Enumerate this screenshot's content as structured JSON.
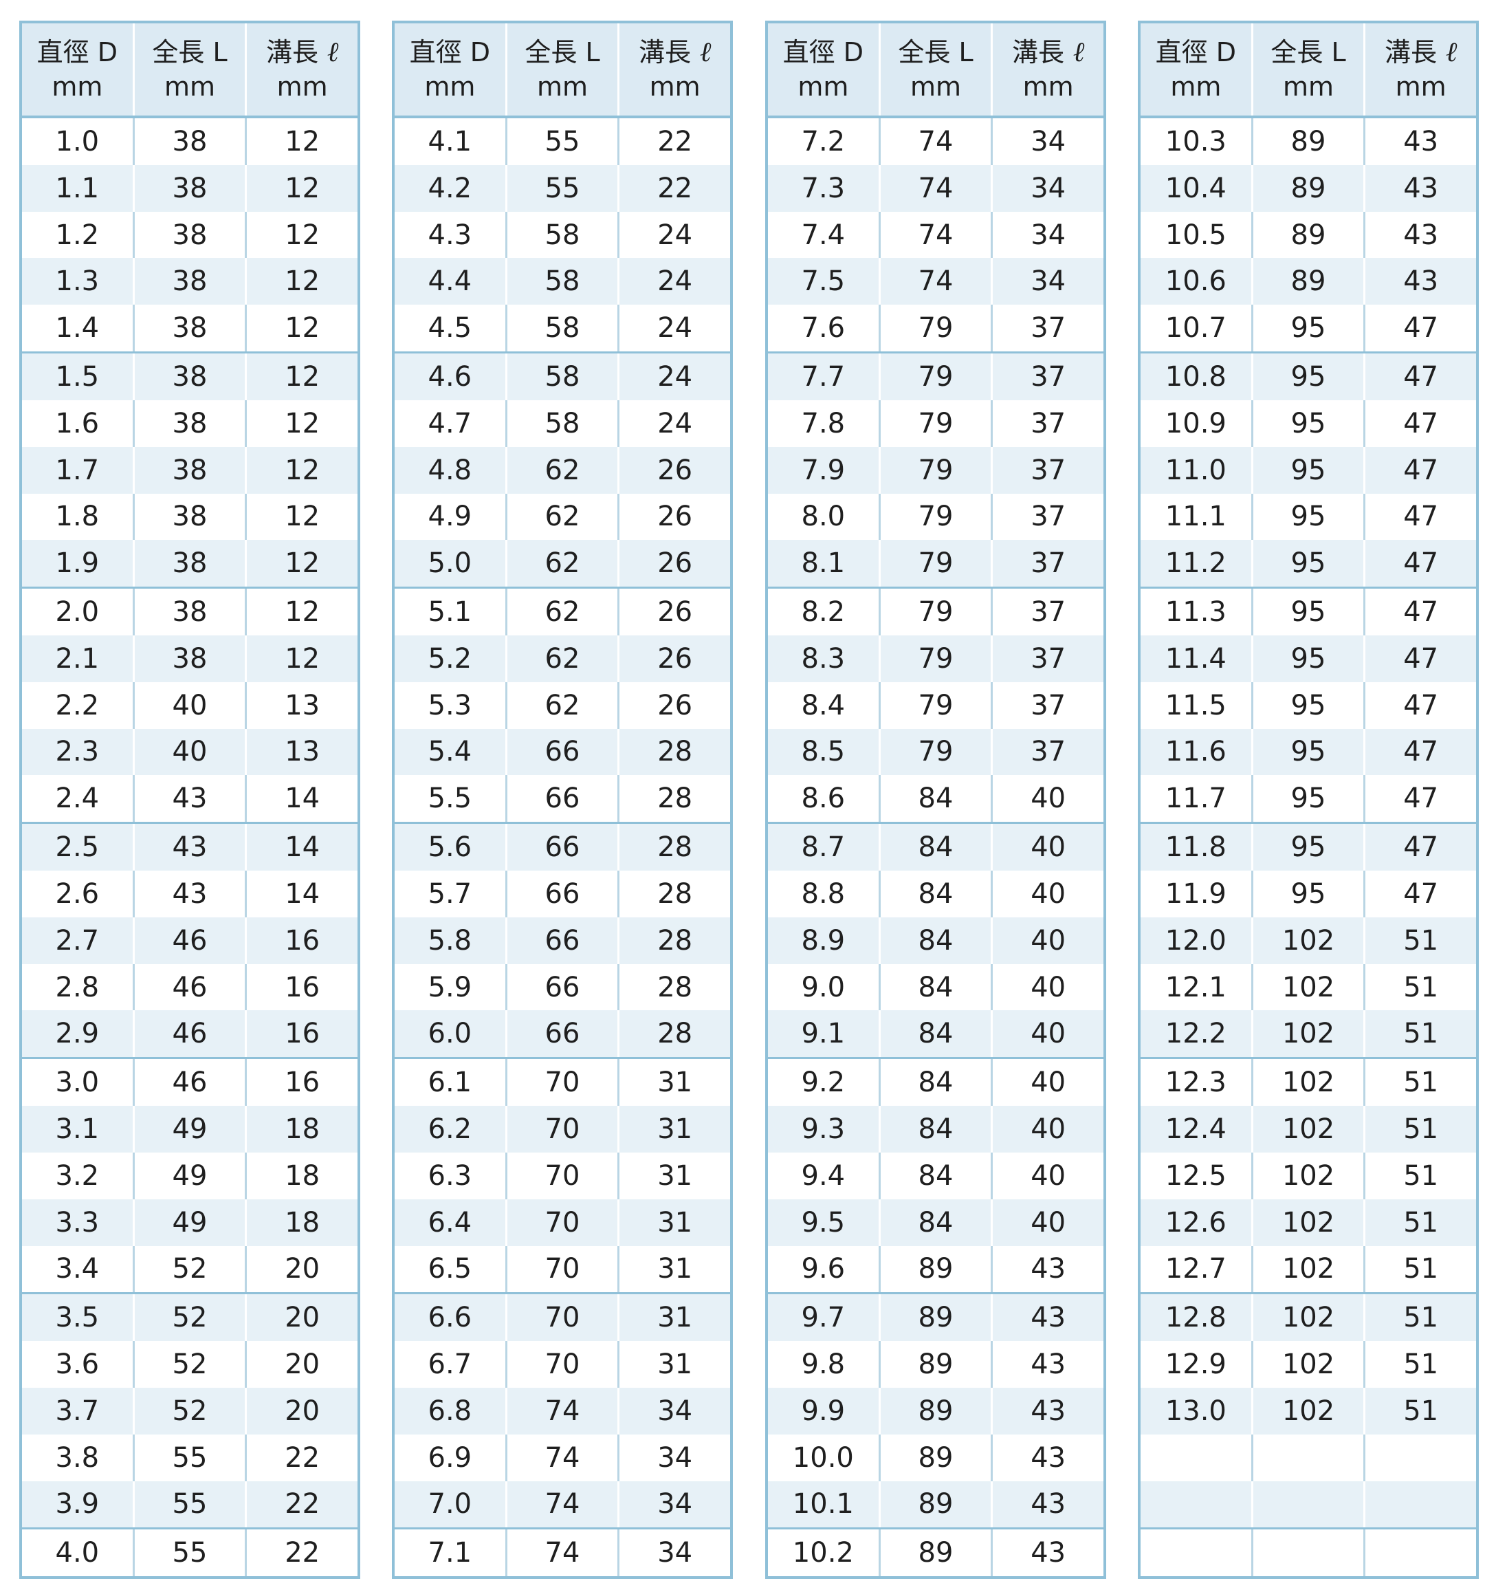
{
  "headers": [
    {
      "name": "直徑 D",
      "unit": "mm"
    },
    {
      "name": "全長 L",
      "unit": "mm"
    },
    {
      "name": "溝長",
      "symbol": "ℓ",
      "unit": "mm"
    }
  ],
  "tables": [
    [
      [
        "1.0",
        "38",
        "12"
      ],
      [
        "1.1",
        "38",
        "12"
      ],
      [
        "1.2",
        "38",
        "12"
      ],
      [
        "1.3",
        "38",
        "12"
      ],
      [
        "1.4",
        "38",
        "12"
      ],
      [
        "1.5",
        "38",
        "12"
      ],
      [
        "1.6",
        "38",
        "12"
      ],
      [
        "1.7",
        "38",
        "12"
      ],
      [
        "1.8",
        "38",
        "12"
      ],
      [
        "1.9",
        "38",
        "12"
      ],
      [
        "2.0",
        "38",
        "12"
      ],
      [
        "2.1",
        "38",
        "12"
      ],
      [
        "2.2",
        "40",
        "13"
      ],
      [
        "2.3",
        "40",
        "13"
      ],
      [
        "2.4",
        "43",
        "14"
      ],
      [
        "2.5",
        "43",
        "14"
      ],
      [
        "2.6",
        "43",
        "14"
      ],
      [
        "2.7",
        "46",
        "16"
      ],
      [
        "2.8",
        "46",
        "16"
      ],
      [
        "2.9",
        "46",
        "16"
      ],
      [
        "3.0",
        "46",
        "16"
      ],
      [
        "3.1",
        "49",
        "18"
      ],
      [
        "3.2",
        "49",
        "18"
      ],
      [
        "3.3",
        "49",
        "18"
      ],
      [
        "3.4",
        "52",
        "20"
      ],
      [
        "3.5",
        "52",
        "20"
      ],
      [
        "3.6",
        "52",
        "20"
      ],
      [
        "3.7",
        "52",
        "20"
      ],
      [
        "3.8",
        "55",
        "22"
      ],
      [
        "3.9",
        "55",
        "22"
      ],
      [
        "4.0",
        "55",
        "22"
      ]
    ],
    [
      [
        "4.1",
        "55",
        "22"
      ],
      [
        "4.2",
        "55",
        "22"
      ],
      [
        "4.3",
        "58",
        "24"
      ],
      [
        "4.4",
        "58",
        "24"
      ],
      [
        "4.5",
        "58",
        "24"
      ],
      [
        "4.6",
        "58",
        "24"
      ],
      [
        "4.7",
        "58",
        "24"
      ],
      [
        "4.8",
        "62",
        "26"
      ],
      [
        "4.9",
        "62",
        "26"
      ],
      [
        "5.0",
        "62",
        "26"
      ],
      [
        "5.1",
        "62",
        "26"
      ],
      [
        "5.2",
        "62",
        "26"
      ],
      [
        "5.3",
        "62",
        "26"
      ],
      [
        "5.4",
        "66",
        "28"
      ],
      [
        "5.5",
        "66",
        "28"
      ],
      [
        "5.6",
        "66",
        "28"
      ],
      [
        "5.7",
        "66",
        "28"
      ],
      [
        "5.8",
        "66",
        "28"
      ],
      [
        "5.9",
        "66",
        "28"
      ],
      [
        "6.0",
        "66",
        "28"
      ],
      [
        "6.1",
        "70",
        "31"
      ],
      [
        "6.2",
        "70",
        "31"
      ],
      [
        "6.3",
        "70",
        "31"
      ],
      [
        "6.4",
        "70",
        "31"
      ],
      [
        "6.5",
        "70",
        "31"
      ],
      [
        "6.6",
        "70",
        "31"
      ],
      [
        "6.7",
        "70",
        "31"
      ],
      [
        "6.8",
        "74",
        "34"
      ],
      [
        "6.9",
        "74",
        "34"
      ],
      [
        "7.0",
        "74",
        "34"
      ],
      [
        "7.1",
        "74",
        "34"
      ]
    ],
    [
      [
        "7.2",
        "74",
        "34"
      ],
      [
        "7.3",
        "74",
        "34"
      ],
      [
        "7.4",
        "74",
        "34"
      ],
      [
        "7.5",
        "74",
        "34"
      ],
      [
        "7.6",
        "79",
        "37"
      ],
      [
        "7.7",
        "79",
        "37"
      ],
      [
        "7.8",
        "79",
        "37"
      ],
      [
        "7.9",
        "79",
        "37"
      ],
      [
        "8.0",
        "79",
        "37"
      ],
      [
        "8.1",
        "79",
        "37"
      ],
      [
        "8.2",
        "79",
        "37"
      ],
      [
        "8.3",
        "79",
        "37"
      ],
      [
        "8.4",
        "79",
        "37"
      ],
      [
        "8.5",
        "79",
        "37"
      ],
      [
        "8.6",
        "84",
        "40"
      ],
      [
        "8.7",
        "84",
        "40"
      ],
      [
        "8.8",
        "84",
        "40"
      ],
      [
        "8.9",
        "84",
        "40"
      ],
      [
        "9.0",
        "84",
        "40"
      ],
      [
        "9.1",
        "84",
        "40"
      ],
      [
        "9.2",
        "84",
        "40"
      ],
      [
        "9.3",
        "84",
        "40"
      ],
      [
        "9.4",
        "84",
        "40"
      ],
      [
        "9.5",
        "84",
        "40"
      ],
      [
        "9.6",
        "89",
        "43"
      ],
      [
        "9.7",
        "89",
        "43"
      ],
      [
        "9.8",
        "89",
        "43"
      ],
      [
        "9.9",
        "89",
        "43"
      ],
      [
        "10.0",
        "89",
        "43"
      ],
      [
        "10.1",
        "89",
        "43"
      ],
      [
        "10.2",
        "89",
        "43"
      ]
    ],
    [
      [
        "10.3",
        "89",
        "43"
      ],
      [
        "10.4",
        "89",
        "43"
      ],
      [
        "10.5",
        "89",
        "43"
      ],
      [
        "10.6",
        "89",
        "43"
      ],
      [
        "10.7",
        "95",
        "47"
      ],
      [
        "10.8",
        "95",
        "47"
      ],
      [
        "10.9",
        "95",
        "47"
      ],
      [
        "11.0",
        "95",
        "47"
      ],
      [
        "11.1",
        "95",
        "47"
      ],
      [
        "11.2",
        "95",
        "47"
      ],
      [
        "11.3",
        "95",
        "47"
      ],
      [
        "11.4",
        "95",
        "47"
      ],
      [
        "11.5",
        "95",
        "47"
      ],
      [
        "11.6",
        "95",
        "47"
      ],
      [
        "11.7",
        "95",
        "47"
      ],
      [
        "11.8",
        "95",
        "47"
      ],
      [
        "11.9",
        "95",
        "47"
      ],
      [
        "12.0",
        "102",
        "51"
      ],
      [
        "12.1",
        "102",
        "51"
      ],
      [
        "12.2",
        "102",
        "51"
      ],
      [
        "12.3",
        "102",
        "51"
      ],
      [
        "12.4",
        "102",
        "51"
      ],
      [
        "12.5",
        "102",
        "51"
      ],
      [
        "12.6",
        "102",
        "51"
      ],
      [
        "12.7",
        "102",
        "51"
      ],
      [
        "12.8",
        "102",
        "51"
      ],
      [
        "12.9",
        "102",
        "51"
      ],
      [
        "13.0",
        "102",
        "51"
      ],
      [
        "",
        "",
        ""
      ],
      [
        "",
        "",
        ""
      ],
      [
        "",
        "",
        ""
      ]
    ]
  ]
}
